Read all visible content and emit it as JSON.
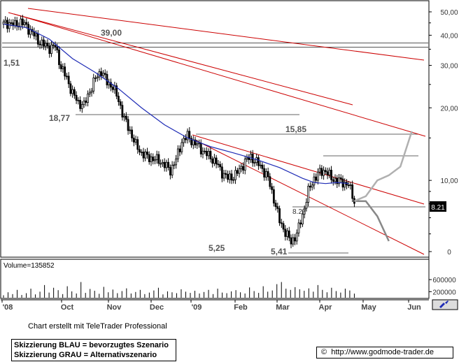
{
  "chart_data": {
    "type": "line",
    "price_scale": "log",
    "ylim": [
      5,
      51
    ],
    "y_tick_labels": [
      "50,00",
      "40,00",
      "30,00",
      "20,00",
      "10,00",
      "0"
    ],
    "x_tick_labels": [
      "'08",
      "Oct",
      "Nov",
      "Dec",
      "'09",
      "Feb",
      "Mar",
      "Apr",
      "May",
      "Jun"
    ],
    "series": [
      {
        "name": "",
        "kind": "candlestick-close",
        "color": "#000000",
        "points": [
          [
            0,
            44.5
          ],
          [
            3,
            45.0
          ],
          [
            6,
            44.0
          ],
          [
            9,
            45.5
          ],
          [
            12,
            43.5
          ],
          [
            15,
            41.0
          ],
          [
            18,
            38.0
          ],
          [
            21,
            36.5
          ],
          [
            24,
            35.5
          ],
          [
            27,
            36.0
          ],
          [
            30,
            29.5
          ],
          [
            33,
            26.5
          ],
          [
            36,
            23.0
          ],
          [
            39,
            21.0
          ],
          [
            42,
            20.5
          ],
          [
            45,
            23.5
          ],
          [
            48,
            26.5
          ],
          [
            51,
            28.5
          ],
          [
            54,
            25.5
          ],
          [
            57,
            24.5
          ],
          [
            60,
            21.5
          ],
          [
            63,
            18.0
          ],
          [
            66,
            16.0
          ],
          [
            69,
            14.0
          ],
          [
            72,
            13.0
          ],
          [
            75,
            12.5
          ],
          [
            78,
            12.3
          ],
          [
            81,
            12.1
          ],
          [
            84,
            11.6
          ],
          [
            87,
            11.0
          ],
          [
            90,
            12.2
          ],
          [
            93,
            14.5
          ],
          [
            96,
            15.3
          ],
          [
            99,
            14.4
          ],
          [
            102,
            13.8
          ],
          [
            105,
            13.0
          ],
          [
            108,
            12.5
          ],
          [
            111,
            11.8
          ],
          [
            114,
            10.8
          ],
          [
            117,
            10.2
          ],
          [
            120,
            10.4
          ],
          [
            123,
            11.0
          ],
          [
            126,
            12.0
          ],
          [
            129,
            12.5
          ],
          [
            132,
            11.9
          ],
          [
            135,
            11.2
          ],
          [
            138,
            10.2
          ],
          [
            141,
            8.4
          ],
          [
            144,
            6.8
          ],
          [
            147,
            6.1
          ],
          [
            150,
            5.55
          ],
          [
            153,
            6.0
          ],
          [
            156,
            7.2
          ],
          [
            159,
            9.0
          ],
          [
            162,
            10.2
          ],
          [
            165,
            10.8
          ],
          [
            168,
            11.0
          ],
          [
            171,
            10.2
          ],
          [
            174,
            10.0
          ],
          [
            177,
            9.8
          ],
          [
            180,
            9.6
          ],
          [
            183,
            8.21
          ]
        ]
      },
      {
        "name": "",
        "kind": "moving-average",
        "color": "#1e2bb5",
        "points": [
          [
            0,
            44.5
          ],
          [
            12,
            43.0
          ],
          [
            24,
            38.5
          ],
          [
            36,
            32.0
          ],
          [
            48,
            28.0
          ],
          [
            60,
            24.0
          ],
          [
            72,
            20.0
          ],
          [
            84,
            17.0
          ],
          [
            96,
            15.0
          ],
          [
            108,
            13.8
          ],
          [
            120,
            13.0
          ],
          [
            132,
            12.2
          ],
          [
            144,
            11.3
          ],
          [
            156,
            10.2
          ],
          [
            162,
            9.8
          ],
          [
            168,
            9.7
          ],
          [
            174,
            9.8
          ],
          [
            180,
            9.7
          ]
        ]
      },
      {
        "name": "",
        "kind": "scenario",
        "color": "#000080",
        "points": [
          [
            183,
            8.21
          ],
          [
            189,
            8.6
          ],
          [
            195,
            10.0
          ],
          [
            201,
            10.5
          ],
          [
            207,
            11.4
          ],
          [
            213,
            16.0
          ]
        ]
      },
      {
        "name": "",
        "kind": "scenario",
        "color": "#888888",
        "points": [
          [
            183,
            8.21
          ],
          [
            189,
            8.2
          ],
          [
            195,
            7.1
          ],
          [
            201,
            5.6
          ]
        ]
      }
    ],
    "volume": {
      "label": "Volume=135852",
      "y_tick_labels": [
        "600000",
        "200000"
      ],
      "ylim": [
        0,
        950000
      ],
      "values": [
        80000,
        180000,
        120000,
        260000,
        90000,
        150000,
        300000,
        110000,
        200000,
        420000,
        170000,
        330000,
        250000,
        120000,
        380000,
        210000,
        140000,
        520000,
        160000,
        290000,
        230000,
        130000,
        360000,
        180000,
        270000,
        150000,
        220000,
        310000,
        140000,
        190000,
        260000,
        120000,
        170000,
        240000,
        330000,
        110000,
        210000,
        180000,
        150000,
        280000,
        200000,
        160000,
        230000,
        140000,
        190000,
        260000,
        120000,
        300000,
        170000,
        150000,
        210000,
        250000,
        180000,
        140000,
        340000,
        220000,
        160000,
        380000,
        200000,
        240000,
        450000,
        520000,
        300000,
        260000,
        350000,
        280000,
        230000,
        310000,
        200000,
        420000,
        260000,
        180000,
        330000,
        220000,
        170000,
        300000,
        240000,
        135852
      ]
    },
    "annotations": [
      "39,00",
      "1,51",
      "18,77",
      "15,85",
      "8.27",
      "5,25",
      "5,41"
    ],
    "current_value": "8.21"
  },
  "footer": {
    "credit": "Chart erstellt mit TeleTrader Professional",
    "legend_blue": "Skizzierung BLAU = bevorzugtes Szenario",
    "legend_grey": "Skizzierung GRAU = Alternativszenario",
    "copyright_symbol": "©",
    "url": "http://www.godmode-trader.de"
  },
  "colors": {
    "price": "#000000",
    "moving_average": "#1e2bb5",
    "trend_lines": "#cc0000",
    "scenario_blue": "#000080",
    "scenario_grey": "#888888"
  }
}
